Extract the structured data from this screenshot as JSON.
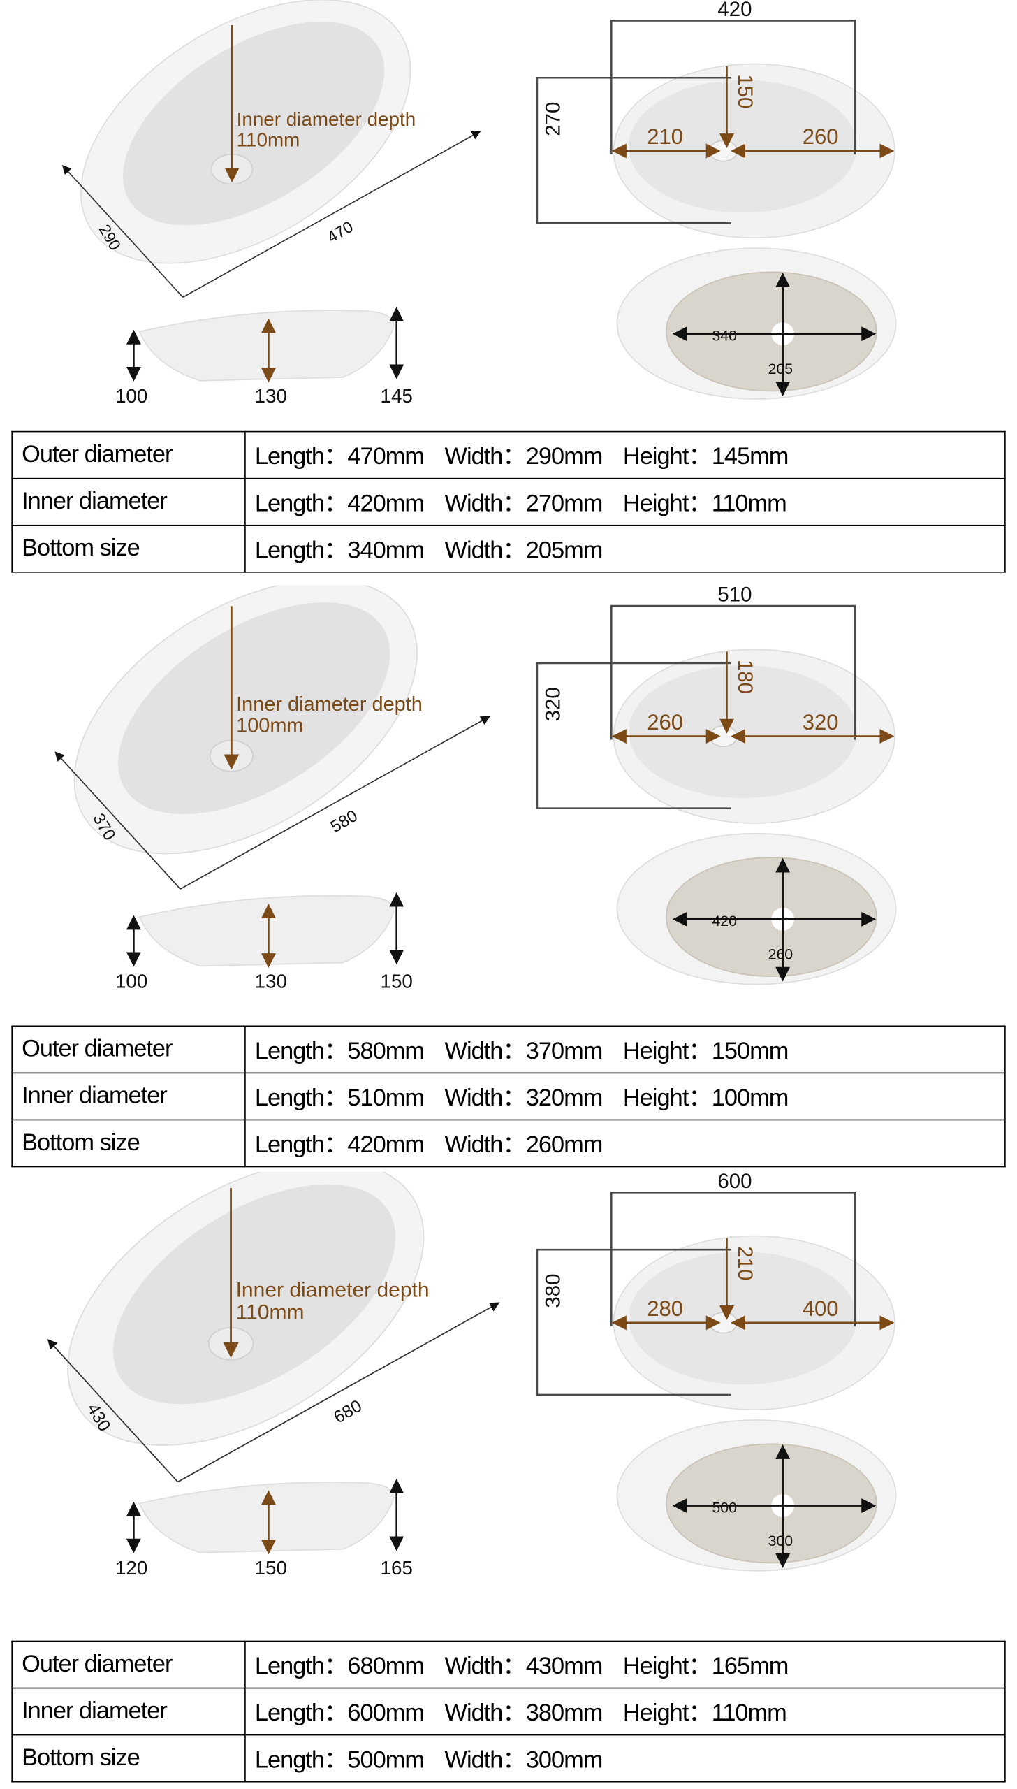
{
  "colors": {
    "accent": "#7b4a17",
    "line": "#4a4a4a",
    "ceramic": "#e9e9e9",
    "bottom": "#d9d5cc"
  },
  "sections": [
    {
      "depth_label": "Inner diameter depth",
      "depth_value": "110mm",
      "persp": {
        "width": "290",
        "length": "470"
      },
      "side": {
        "left": "100",
        "mid": "130",
        "right": "145"
      },
      "top": {
        "length": "420",
        "width": "270",
        "half_w": "150",
        "left": "210",
        "right": "260"
      },
      "bottom": {
        "length": "340",
        "width": "205"
      },
      "table": [
        {
          "label": "Outer diameter",
          "cells": [
            "Length：470mm",
            "Width：290mm",
            "Height：145mm"
          ]
        },
        {
          "label": "Inner diameter",
          "cells": [
            "Length：420mm",
            "Width：270mm",
            "Height：110mm"
          ]
        },
        {
          "label": "Bottom size",
          "cells": [
            "Length：340mm",
            "Width：205mm"
          ]
        }
      ]
    },
    {
      "depth_label": "Inner diameter depth",
      "depth_value": "100mm",
      "persp": {
        "width": "370",
        "length": "580"
      },
      "side": {
        "left": "100",
        "mid": "130",
        "right": "150"
      },
      "top": {
        "length": "510",
        "width": "320",
        "half_w": "180",
        "left": "260",
        "right": "320"
      },
      "bottom": {
        "length": "420",
        "width": "260"
      },
      "table": [
        {
          "label": "Outer diameter",
          "cells": [
            "Length：580mm",
            "Width：370mm",
            "Height：150mm"
          ]
        },
        {
          "label": "Inner diameter",
          "cells": [
            "Length：510mm",
            "Width：320mm",
            "Height：100mm"
          ]
        },
        {
          "label": "Bottom size",
          "cells": [
            "Length：420mm",
            "Width：260mm"
          ]
        }
      ]
    },
    {
      "depth_label": "Inner diameter depth",
      "depth_value": "110mm",
      "persp": {
        "width": "430",
        "length": "680"
      },
      "side": {
        "left": "120",
        "mid": "150",
        "right": "165"
      },
      "top": {
        "length": "600",
        "width": "380",
        "half_w": "210",
        "left": "280",
        "right": "400"
      },
      "bottom": {
        "length": "500",
        "width": "300"
      },
      "table": [
        {
          "label": "Outer diameter",
          "cells": [
            "Length：680mm",
            "Width：430mm",
            "Height：165mm"
          ]
        },
        {
          "label": "Inner diameter",
          "cells": [
            "Length：600mm",
            "Width：380mm",
            "Height：110mm"
          ]
        },
        {
          "label": "Bottom size",
          "cells": [
            "Length：500mm",
            "Width：300mm"
          ]
        }
      ]
    }
  ]
}
